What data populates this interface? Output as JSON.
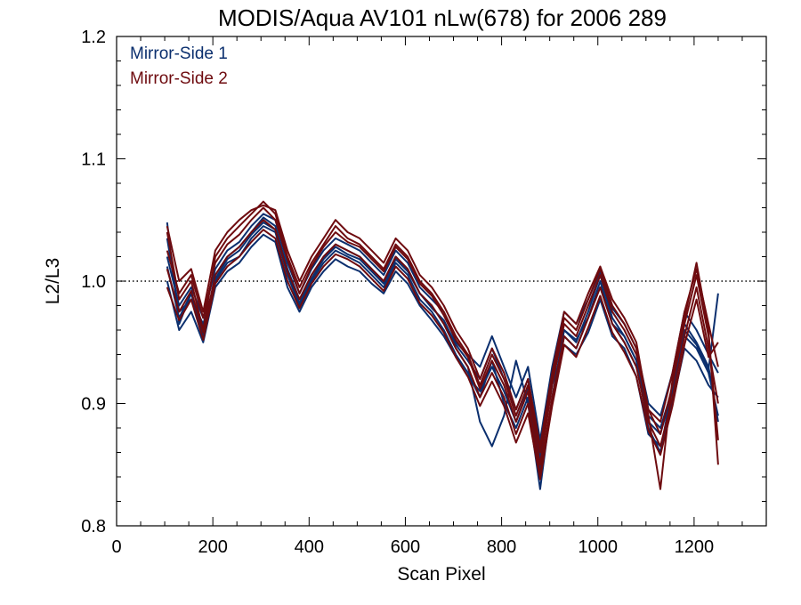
{
  "chart_data": {
    "type": "line",
    "title": "MODIS/Aqua AV101 nLw(678) for 2006 289",
    "xlabel": "Scan Pixel",
    "ylabel": "L2/L3",
    "xlim": [
      0,
      1350
    ],
    "ylim": [
      0.8,
      1.2
    ],
    "xticks": [
      0,
      200,
      400,
      600,
      800,
      1000,
      1200
    ],
    "yticks": [
      "0.8",
      "0.9",
      "1.0",
      "1.1",
      "1.2"
    ],
    "reference_line": 1.0,
    "reference_style": "dotted",
    "legend_position": "top-left",
    "colors": {
      "mirror_side_1": "#0b2f6e",
      "mirror_side_2": "#6e0b0f",
      "reference": "#000000"
    },
    "x": [
      105,
      130,
      155,
      180,
      205,
      230,
      255,
      280,
      305,
      330,
      355,
      380,
      405,
      430,
      455,
      480,
      505,
      530,
      555,
      580,
      605,
      630,
      655,
      680,
      705,
      730,
      755,
      780,
      805,
      830,
      855,
      880,
      905,
      930,
      955,
      980,
      1005,
      1030,
      1055,
      1080,
      1105,
      1130,
      1155,
      1180,
      1205,
      1230,
      1250
    ],
    "series": [
      {
        "name": "Mirror-Side 1",
        "group": "mirror_side_1",
        "lines": [
          [
            1.048,
            0.965,
            0.99,
            0.955,
            1.005,
            1.02,
            1.028,
            1.04,
            1.052,
            1.045,
            1.01,
            0.985,
            1.005,
            1.02,
            1.03,
            1.025,
            1.02,
            1.01,
            1.0,
            1.02,
            1.01,
            0.99,
            0.98,
            0.965,
            0.945,
            0.93,
            0.885,
            0.865,
            0.89,
            0.935,
            0.9,
            0.83,
            0.905,
            0.96,
            0.95,
            0.975,
            1.005,
            0.97,
            0.955,
            0.935,
            0.88,
            0.86,
            0.915,
            0.965,
            0.95,
            0.93,
            0.885
          ],
          [
            1.035,
            0.975,
            0.985,
            0.965,
            1.0,
            1.015,
            1.02,
            1.035,
            1.045,
            1.04,
            1.005,
            0.98,
            1.0,
            1.015,
            1.025,
            1.02,
            1.015,
            1.005,
            0.995,
            1.015,
            1.005,
            0.985,
            0.975,
            0.96,
            0.94,
            0.925,
            0.905,
            0.935,
            0.9,
            0.88,
            0.905,
            0.845,
            0.9,
            0.955,
            0.945,
            0.97,
            1.0,
            0.965,
            0.95,
            0.93,
            0.885,
            0.875,
            0.91,
            0.955,
            0.945,
            0.925,
            0.89
          ],
          [
            1.02,
            0.98,
            0.995,
            0.97,
            1.01,
            1.025,
            1.032,
            1.045,
            1.055,
            1.05,
            1.015,
            0.99,
            1.01,
            1.025,
            1.035,
            1.03,
            1.025,
            1.015,
            1.005,
            1.025,
            1.015,
            0.995,
            0.985,
            0.975,
            0.95,
            0.94,
            0.93,
            0.955,
            0.93,
            0.905,
            0.93,
            0.87,
            0.93,
            0.975,
            0.965,
            0.985,
            1.008,
            0.978,
            0.965,
            0.945,
            0.9,
            0.89,
            0.925,
            0.975,
            0.96,
            0.94,
            0.925
          ],
          [
            1.0,
            0.96,
            0.975,
            0.95,
            0.995,
            1.008,
            1.015,
            1.028,
            1.038,
            1.032,
            0.995,
            0.975,
            0.995,
            1.008,
            1.018,
            1.012,
            1.008,
            0.998,
            0.99,
            1.008,
            0.998,
            0.98,
            0.968,
            0.955,
            0.938,
            0.922,
            0.91,
            0.93,
            0.91,
            0.885,
            0.912,
            0.855,
            0.915,
            0.948,
            0.94,
            0.958,
            0.985,
            0.955,
            0.945,
            0.922,
            0.875,
            0.865,
            0.9,
            0.945,
            0.935,
            0.915,
            0.905
          ],
          [
            1.012,
            0.97,
            0.99,
            0.962,
            1.002,
            1.018,
            1.025,
            1.038,
            1.048,
            1.042,
            1.008,
            0.982,
            1.002,
            1.018,
            1.028,
            1.022,
            1.018,
            1.008,
            0.998,
            1.018,
            1.008,
            0.99,
            0.978,
            0.968,
            0.948,
            0.935,
            0.92,
            0.945,
            0.92,
            0.895,
            0.92,
            0.862,
            0.92,
            0.96,
            0.952,
            0.97,
            0.995,
            0.965,
            0.955,
            0.935,
            0.89,
            0.88,
            0.912,
            0.96,
            0.948,
            0.928,
            0.99
          ]
        ]
      },
      {
        "name": "Mirror-Side 2",
        "group": "mirror_side_2",
        "lines": [
          [
            1.04,
            0.985,
            1.0,
            0.96,
            1.02,
            1.035,
            1.045,
            1.055,
            1.065,
            1.055,
            1.02,
            0.995,
            1.015,
            1.03,
            1.045,
            1.035,
            1.03,
            1.02,
            1.01,
            1.03,
            1.02,
            1.0,
            0.99,
            0.975,
            0.955,
            0.94,
            0.915,
            0.94,
            0.92,
            0.89,
            0.915,
            0.86,
            0.92,
            0.97,
            0.96,
            0.985,
            1.01,
            0.98,
            0.965,
            0.945,
            0.89,
            0.83,
            0.92,
            0.97,
            1.015,
            0.96,
            0.85
          ],
          [
            1.025,
            0.99,
            1.005,
            0.97,
            1.015,
            1.03,
            1.038,
            1.05,
            1.06,
            1.05,
            1.018,
            0.99,
            1.012,
            1.028,
            1.04,
            1.032,
            1.028,
            1.018,
            1.008,
            1.028,
            1.018,
            0.998,
            0.988,
            0.972,
            0.952,
            0.938,
            0.912,
            0.935,
            0.915,
            0.885,
            0.91,
            0.85,
            0.915,
            0.965,
            0.955,
            0.98,
            1.005,
            0.975,
            0.96,
            0.94,
            0.895,
            0.875,
            0.915,
            0.965,
            1.005,
            0.955,
            0.87
          ],
          [
            1.01,
            0.975,
            0.992,
            0.958,
            1.005,
            1.02,
            1.028,
            1.04,
            1.05,
            1.042,
            1.008,
            0.985,
            1.005,
            1.02,
            1.03,
            1.025,
            1.02,
            1.01,
            1.0,
            1.02,
            1.01,
            0.99,
            0.98,
            0.965,
            0.945,
            0.93,
            0.905,
            0.925,
            0.905,
            0.875,
            0.9,
            0.842,
            0.905,
            0.955,
            0.945,
            0.97,
            0.995,
            0.965,
            0.95,
            0.93,
            0.885,
            0.865,
            0.905,
            0.955,
            0.995,
            0.945,
            0.9
          ],
          [
            1.045,
            1.0,
            1.01,
            0.975,
            1.025,
            1.04,
            1.05,
            1.058,
            1.062,
            1.058,
            1.025,
            1.0,
            1.02,
            1.035,
            1.05,
            1.04,
            1.035,
            1.025,
            1.015,
            1.035,
            1.025,
            1.005,
            0.995,
            0.98,
            0.96,
            0.945,
            0.92,
            0.945,
            0.925,
            0.895,
            0.92,
            0.865,
            0.925,
            0.975,
            0.965,
            0.99,
            1.012,
            0.985,
            0.97,
            0.95,
            0.895,
            0.885,
            0.925,
            0.975,
            1.01,
            0.965,
            0.93
          ],
          [
            0.995,
            0.968,
            0.985,
            0.952,
            0.998,
            1.012,
            1.02,
            1.032,
            1.042,
            1.035,
            1.0,
            0.978,
            0.998,
            1.012,
            1.022,
            1.018,
            1.012,
            1.002,
            0.992,
            1.012,
            1.002,
            0.982,
            0.972,
            0.958,
            0.938,
            0.922,
            0.898,
            0.918,
            0.898,
            0.868,
            0.892,
            0.838,
            0.898,
            0.948,
            0.938,
            0.962,
            0.988,
            0.958,
            0.942,
            0.922,
            0.878,
            0.858,
            0.898,
            0.948,
            0.985,
            0.938,
            0.95
          ]
        ]
      }
    ]
  }
}
